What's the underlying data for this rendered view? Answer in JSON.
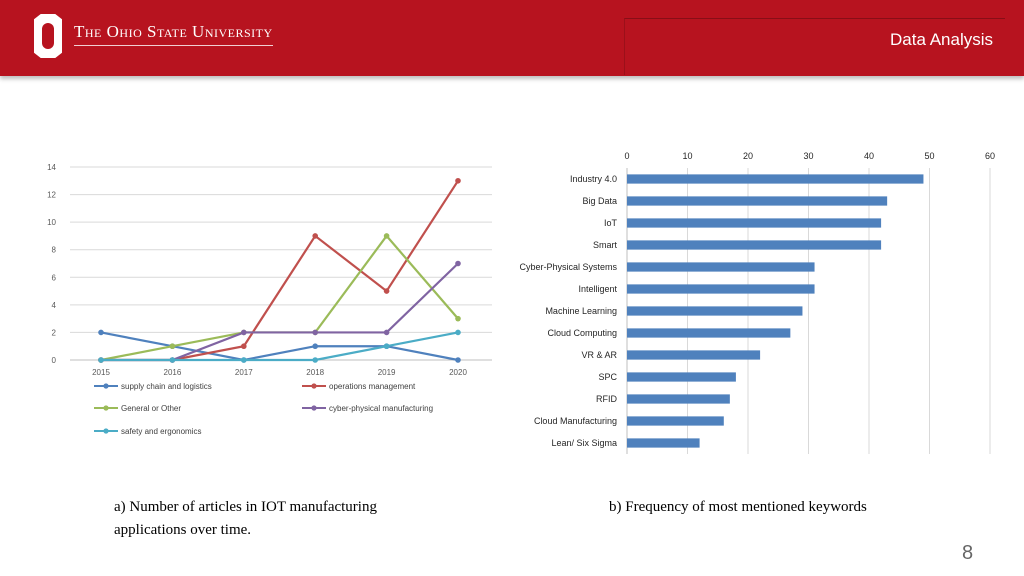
{
  "header": {
    "university": "The Ohio State University",
    "section_title": "Data Analysis",
    "brand_color": "#b7131f"
  },
  "chart_data": [
    {
      "type": "line",
      "title": "",
      "xlabel": "",
      "ylabel": "",
      "x": [
        "2015",
        "2016",
        "2017",
        "2018",
        "2019",
        "2020"
      ],
      "ylim": [
        0,
        14
      ],
      "yticks": [
        "0",
        "2",
        "4",
        "6",
        "8",
        "10",
        "12",
        "14"
      ],
      "grid": true,
      "legend_position": "bottom",
      "series": [
        {
          "name": "supply chain and logistics",
          "color": "#4f81bd",
          "values": [
            2,
            1,
            0,
            1,
            1,
            0
          ]
        },
        {
          "name": "operations management",
          "color": "#c0504d",
          "values": [
            0,
            0,
            1,
            9,
            5,
            13
          ]
        },
        {
          "name": "General or Other",
          "color": "#9bbb59",
          "values": [
            0,
            1,
            2,
            2,
            9,
            3
          ]
        },
        {
          "name": "cyber-physical manufacturing",
          "color": "#8064a2",
          "values": [
            0,
            0,
            2,
            2,
            2,
            7
          ]
        },
        {
          "name": "safety and ergonomics",
          "color": "#4bacc6",
          "values": [
            0,
            0,
            0,
            0,
            1,
            2
          ]
        }
      ]
    },
    {
      "type": "bar",
      "orientation": "horizontal",
      "title": "",
      "categories": [
        "Industry 4.0",
        "Big Data",
        "IoT",
        "Smart",
        "Cyber-Physical Systems",
        "Intelligent",
        "Machine Learning",
        "Cloud Computing",
        "VR & AR",
        "SPC",
        "RFID",
        "Cloud Manufacturing",
        "Lean/ Six Sigma"
      ],
      "values": [
        49,
        43,
        42,
        42,
        31,
        31,
        29,
        27,
        22,
        18,
        17,
        16,
        12
      ],
      "xlim": [
        0,
        60
      ],
      "xticks": [
        "0",
        "10",
        "20",
        "30",
        "40",
        "50",
        "60"
      ],
      "grid": true,
      "bar_color": "#4f81bd"
    }
  ],
  "captions": {
    "left_line1": "a) Number of articles in IOT manufacturing",
    "left_line2": "applications over time.",
    "right": "b) Frequency  of most mentioned keywords"
  },
  "page_number": "8"
}
